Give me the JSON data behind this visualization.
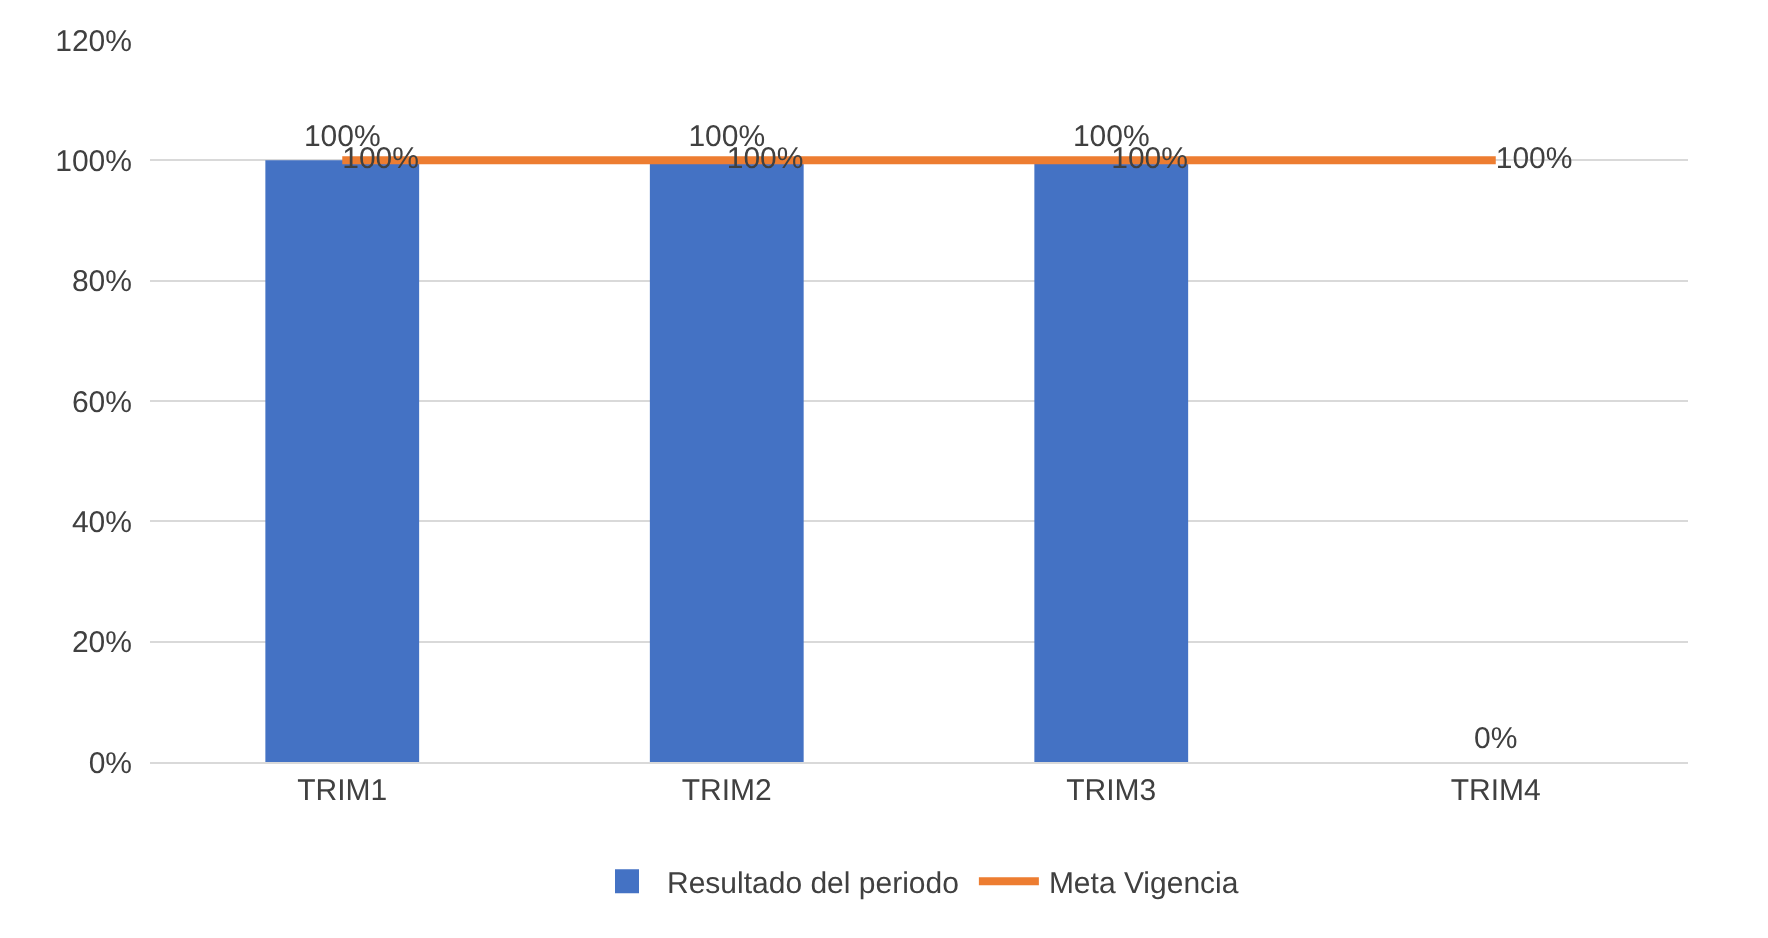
{
  "chart_data": {
    "type": "bar",
    "categories": [
      "TRIM1",
      "TRIM2",
      "TRIM3",
      "TRIM4"
    ],
    "series": [
      {
        "name": "Resultado del periodo",
        "color": "#4472c4",
        "values": [
          100,
          100,
          100,
          0
        ],
        "value_labels": [
          "100%",
          "100%",
          "100%",
          "0%"
        ]
      },
      {
        "name": "Meta Vigencia",
        "type": "line",
        "color": "#ed7d31",
        "values": [
          100,
          100,
          100,
          100
        ],
        "value_labels": [
          "100%",
          "100%",
          "100%",
          "100%"
        ],
        "marker": "none",
        "line_style": "solid"
      }
    ],
    "ylim": [
      0,
      120
    ],
    "yticks": [
      {
        "value": 0,
        "label": "0%"
      },
      {
        "value": 20,
        "label": "20%"
      },
      {
        "value": 40,
        "label": "40%"
      },
      {
        "value": 60,
        "label": "60%"
      },
      {
        "value": 80,
        "label": "80%"
      },
      {
        "value": 100,
        "label": "100%"
      },
      {
        "value": 120,
        "label": "120%"
      }
    ],
    "grid": "y",
    "legend": "bottom"
  }
}
